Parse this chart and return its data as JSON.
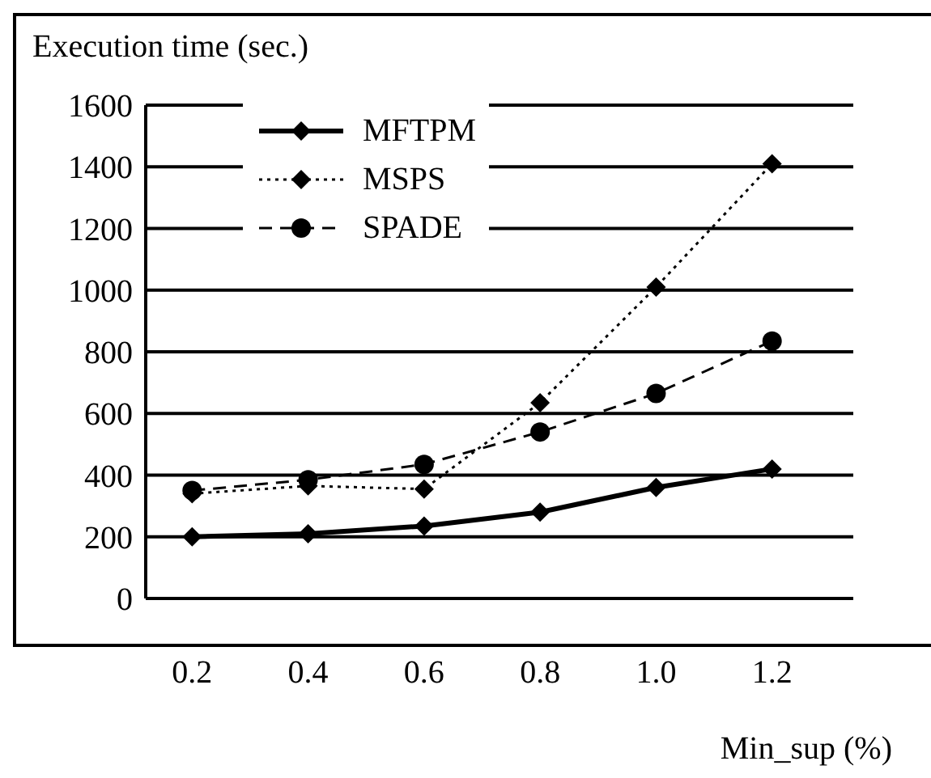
{
  "chart_data": {
    "type": "line",
    "ylabel": "Execution time (sec.)",
    "xlabel": "Min_sup (%)",
    "categories": [
      "0.2",
      "0.4",
      "0.6",
      "0.8",
      "1.0",
      "1.2"
    ],
    "series": [
      {
        "name": "MFTPM",
        "color": "#000000",
        "marker": "diamond",
        "line_style": "solid",
        "values": [
          200,
          210,
          235,
          280,
          360,
          420
        ]
      },
      {
        "name": "MSPS",
        "color": "#000000",
        "marker": "diamond",
        "line_style": "dotted",
        "values": [
          340,
          365,
          355,
          635,
          1010,
          1410
        ]
      },
      {
        "name": "SPADE",
        "color": "#000000",
        "marker": "circle",
        "line_style": "dashed",
        "values": [
          350,
          385,
          435,
          540,
          665,
          835
        ]
      }
    ],
    "ylim": [
      0,
      1600
    ],
    "yticks": [
      0,
      200,
      400,
      600,
      800,
      1000,
      1200,
      1400,
      1600
    ],
    "grid": "y",
    "legend": "top left"
  }
}
